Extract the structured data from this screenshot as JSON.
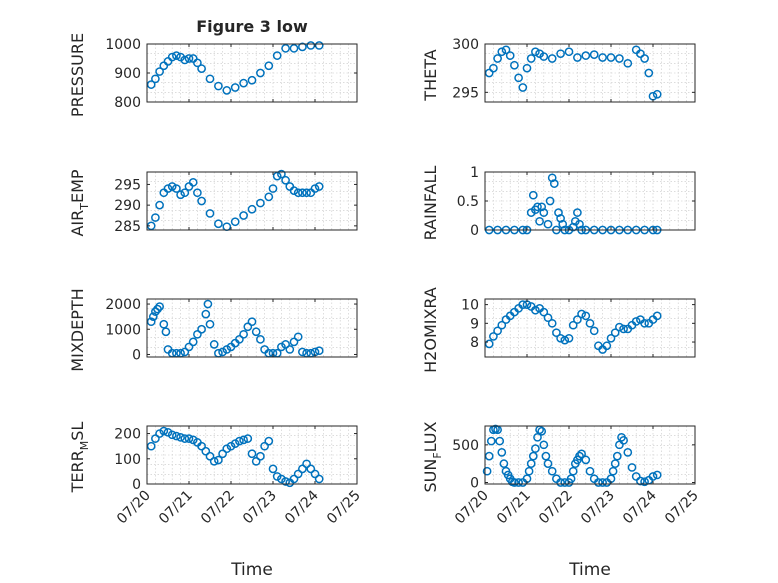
{
  "figure": {
    "title": "Figure 3 low"
  },
  "chart_data": [
    {
      "type": "scatter",
      "ylabel": "PRESSURE",
      "xlabel": "",
      "xlim": [
        0,
        5
      ],
      "ylim": [
        800,
        1000
      ],
      "yticks": [
        800,
        900,
        1000
      ],
      "xtick_labels": [],
      "x": [
        0.1,
        0.2,
        0.3,
        0.4,
        0.5,
        0.6,
        0.7,
        0.8,
        0.9,
        1.0,
        1.1,
        1.2,
        1.3,
        1.5,
        1.7,
        1.9,
        2.1,
        2.3,
        2.5,
        2.7,
        2.9,
        3.1,
        3.3,
        3.5,
        3.7,
        3.9,
        4.1
      ],
      "y": [
        860,
        880,
        905,
        925,
        940,
        955,
        960,
        955,
        945,
        950,
        950,
        935,
        915,
        880,
        855,
        840,
        850,
        865,
        875,
        900,
        925,
        960,
        985,
        985,
        990,
        995,
        995
      ]
    },
    {
      "type": "scatter",
      "ylabel": "THETA",
      "xlabel": "",
      "xlim": [
        0,
        5
      ],
      "ylim": [
        294,
        300
      ],
      "yticks": [
        295,
        300
      ],
      "xtick_labels": [],
      "x": [
        0.1,
        0.2,
        0.3,
        0.4,
        0.5,
        0.6,
        0.7,
        0.8,
        0.9,
        1.0,
        1.1,
        1.2,
        1.3,
        1.4,
        1.6,
        1.8,
        2.0,
        2.2,
        2.4,
        2.6,
        2.8,
        3.0,
        3.2,
        3.4,
        3.6,
        3.7,
        3.8,
        3.9,
        4.0,
        4.1
      ],
      "y": [
        297.0,
        297.5,
        298.5,
        299.2,
        299.4,
        298.8,
        297.8,
        296.5,
        295.5,
        297.5,
        298.5,
        299.2,
        299.0,
        298.7,
        298.5,
        299.0,
        299.2,
        298.6,
        298.8,
        298.9,
        298.6,
        298.6,
        298.5,
        298.0,
        299.4,
        299.0,
        298.5,
        297.0,
        294.6,
        294.8
      ]
    },
    {
      "type": "scatter",
      "ylabel": "AIR_TEMP",
      "xlabel": "",
      "xlim": [
        0,
        5
      ],
      "ylim": [
        284,
        298
      ],
      "yticks": [
        285,
        290,
        295
      ],
      "xtick_labels": [],
      "x": [
        0.1,
        0.2,
        0.3,
        0.4,
        0.5,
        0.6,
        0.7,
        0.8,
        0.9,
        1.0,
        1.1,
        1.2,
        1.3,
        1.5,
        1.7,
        1.9,
        2.1,
        2.3,
        2.5,
        2.7,
        2.9,
        3.0,
        3.1,
        3.2,
        3.3,
        3.4,
        3.5,
        3.6,
        3.7,
        3.8,
        3.9,
        4.0,
        4.1
      ],
      "y": [
        285.0,
        287.0,
        290.0,
        293.0,
        294.0,
        294.5,
        294.0,
        292.5,
        293.0,
        294.5,
        295.5,
        293.0,
        291.0,
        288.0,
        285.5,
        284.8,
        286.0,
        287.5,
        289.0,
        290.5,
        292.0,
        294.0,
        297.0,
        297.5,
        296.0,
        294.5,
        293.5,
        293.0,
        293.0,
        293.0,
        293.0,
        294.0,
        294.5
      ]
    },
    {
      "type": "scatter",
      "ylabel": "RAINFALL",
      "xlabel": "",
      "xlim": [
        0,
        5
      ],
      "ylim": [
        0,
        1
      ],
      "yticks": [
        0,
        0.5,
        1
      ],
      "xtick_labels": [],
      "x": [
        0.1,
        0.3,
        0.5,
        0.7,
        0.9,
        1.0,
        1.1,
        1.15,
        1.2,
        1.25,
        1.3,
        1.35,
        1.4,
        1.5,
        1.55,
        1.6,
        1.65,
        1.7,
        1.75,
        1.8,
        1.85,
        1.9,
        2.0,
        2.1,
        2.15,
        2.2,
        2.25,
        2.3,
        2.4,
        2.6,
        2.8,
        3.0,
        3.2,
        3.4,
        3.6,
        3.8,
        4.0,
        4.1
      ],
      "y": [
        0,
        0,
        0,
        0,
        0,
        0,
        0.3,
        0.6,
        0.35,
        0.4,
        0.15,
        0.4,
        0.3,
        0.1,
        0.5,
        0.9,
        0.8,
        0,
        0.3,
        0.2,
        0.1,
        0,
        0,
        0.05,
        0.15,
        0.3,
        0.1,
        0,
        0,
        0,
        0,
        0,
        0,
        0,
        0,
        0,
        0,
        0
      ]
    },
    {
      "type": "scatter",
      "ylabel": "MIXDEPTH",
      "xlabel": "",
      "xlim": [
        0,
        5
      ],
      "ylim": [
        -100,
        2200
      ],
      "yticks": [
        0,
        1000,
        2000
      ],
      "xtick_labels": [],
      "x": [
        0.1,
        0.15,
        0.2,
        0.25,
        0.3,
        0.4,
        0.45,
        0.5,
        0.6,
        0.7,
        0.8,
        0.9,
        1.0,
        1.1,
        1.2,
        1.3,
        1.4,
        1.45,
        1.5,
        1.6,
        1.7,
        1.8,
        1.9,
        2.0,
        2.1,
        2.2,
        2.3,
        2.4,
        2.5,
        2.6,
        2.7,
        2.8,
        2.9,
        3.0,
        3.1,
        3.2,
        3.3,
        3.4,
        3.5,
        3.6,
        3.7,
        3.8,
        3.9,
        4.0,
        4.1
      ],
      "y": [
        1300,
        1500,
        1700,
        1800,
        1900,
        1200,
        900,
        200,
        50,
        50,
        50,
        100,
        300,
        500,
        800,
        1000,
        1600,
        2000,
        1200,
        400,
        50,
        100,
        200,
        300,
        450,
        600,
        800,
        1100,
        1300,
        900,
        600,
        200,
        50,
        50,
        50,
        300,
        400,
        200,
        500,
        700,
        100,
        50,
        50,
        100,
        150
      ]
    },
    {
      "type": "scatter",
      "ylabel": "H2OMIXRA",
      "xlabel": "",
      "xlim": [
        0,
        5
      ],
      "ylim": [
        7.2,
        10.3
      ],
      "yticks": [
        8,
        9,
        10
      ],
      "xtick_labels": [],
      "x": [
        0.1,
        0.2,
        0.3,
        0.4,
        0.5,
        0.6,
        0.7,
        0.8,
        0.9,
        1.0,
        1.1,
        1.2,
        1.3,
        1.4,
        1.5,
        1.6,
        1.7,
        1.8,
        1.9,
        2.0,
        2.1,
        2.2,
        2.3,
        2.4,
        2.5,
        2.6,
        2.7,
        2.8,
        2.9,
        3.0,
        3.1,
        3.2,
        3.3,
        3.4,
        3.5,
        3.6,
        3.7,
        3.8,
        3.9,
        4.0,
        4.1
      ],
      "y": [
        7.9,
        8.3,
        8.6,
        8.9,
        9.2,
        9.4,
        9.6,
        9.8,
        10.0,
        10.0,
        9.9,
        9.7,
        9.8,
        9.6,
        9.3,
        9.0,
        8.5,
        8.2,
        8.1,
        8.2,
        8.9,
        9.2,
        9.5,
        9.4,
        9.0,
        8.6,
        7.8,
        7.6,
        7.8,
        8.2,
        8.5,
        8.8,
        8.7,
        8.7,
        8.9,
        9.1,
        9.2,
        9.0,
        9.0,
        9.2,
        9.4
      ]
    },
    {
      "type": "scatter",
      "ylabel": "TERR_MSL",
      "xlabel": "Time",
      "xlim": [
        0,
        5
      ],
      "ylim": [
        0,
        230
      ],
      "yticks": [
        0,
        100,
        200
      ],
      "xtick_labels": [
        "07/20",
        "07/21",
        "07/22",
        "07/23",
        "07/24",
        "07/25"
      ],
      "x": [
        0.1,
        0.2,
        0.3,
        0.4,
        0.5,
        0.6,
        0.7,
        0.8,
        0.9,
        1.0,
        1.1,
        1.2,
        1.3,
        1.4,
        1.5,
        1.6,
        1.7,
        1.8,
        1.9,
        2.0,
        2.1,
        2.2,
        2.3,
        2.4,
        2.5,
        2.6,
        2.7,
        2.8,
        2.9,
        3.0,
        3.1,
        3.2,
        3.3,
        3.4,
        3.5,
        3.6,
        3.7,
        3.8,
        3.9,
        4.0,
        4.1
      ],
      "y": [
        150,
        180,
        200,
        210,
        205,
        195,
        190,
        185,
        180,
        180,
        175,
        165,
        150,
        130,
        110,
        90,
        95,
        120,
        140,
        150,
        160,
        170,
        175,
        180,
        120,
        90,
        110,
        150,
        170,
        60,
        30,
        20,
        10,
        5,
        20,
        40,
        60,
        80,
        60,
        40,
        20
      ]
    },
    {
      "type": "scatter",
      "ylabel": "SUN_FLUX",
      "xlabel": "Time",
      "xlim": [
        0,
        5
      ],
      "ylim": [
        -20,
        750
      ],
      "yticks": [
        0,
        500
      ],
      "xtick_labels": [
        "07/20",
        "07/21",
        "07/22",
        "07/23",
        "07/24",
        "07/25"
      ],
      "x": [
        0.05,
        0.1,
        0.15,
        0.2,
        0.25,
        0.3,
        0.35,
        0.4,
        0.45,
        0.5,
        0.55,
        0.6,
        0.65,
        0.7,
        0.8,
        0.9,
        1.0,
        1.05,
        1.1,
        1.15,
        1.2,
        1.25,
        1.3,
        1.35,
        1.4,
        1.45,
        1.5,
        1.6,
        1.7,
        1.8,
        1.9,
        2.0,
        2.05,
        2.1,
        2.15,
        2.2,
        2.25,
        2.3,
        2.4,
        2.5,
        2.6,
        2.7,
        2.8,
        2.9,
        3.0,
        3.05,
        3.1,
        3.15,
        3.2,
        3.25,
        3.3,
        3.4,
        3.5,
        3.6,
        3.7,
        3.8,
        3.9,
        4.0,
        4.1
      ],
      "y": [
        150,
        350,
        550,
        700,
        710,
        700,
        550,
        400,
        250,
        150,
        100,
        50,
        10,
        0,
        0,
        0,
        50,
        150,
        250,
        350,
        450,
        600,
        700,
        680,
        500,
        350,
        250,
        150,
        50,
        0,
        0,
        0,
        50,
        150,
        250,
        300,
        350,
        380,
        300,
        150,
        50,
        0,
        0,
        0,
        50,
        150,
        250,
        350,
        500,
        600,
        560,
        400,
        200,
        80,
        20,
        10,
        30,
        80,
        100
      ]
    }
  ]
}
